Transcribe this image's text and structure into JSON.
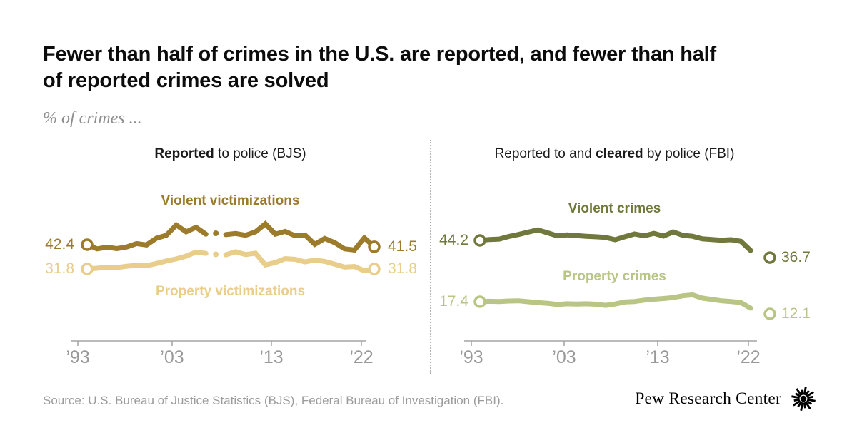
{
  "header": {
    "title_line1": "Fewer than half of crimes in the U.S. are reported, and fewer than half",
    "title_line2": "of reported crimes are solved",
    "subtitle": "% of crimes ..."
  },
  "colors": {
    "gold": "#9C7B2A",
    "tan": "#E9CD8B",
    "olive": "#71783C",
    "light_green": "#B9C584",
    "axis": "#a3a3a3",
    "divider": "#b3b3b3"
  },
  "chart_data": [
    {
      "type": "line",
      "panel": "left",
      "panel_title": {
        "pre": "",
        "bold": "Reported",
        "post": " to police (BJS)"
      },
      "years": [
        1993,
        1994,
        1995,
        1996,
        1997,
        1998,
        1999,
        2000,
        2001,
        2002,
        2003,
        2004,
        2005,
        2006,
        2007,
        2008,
        2009,
        2010,
        2011,
        2012,
        2013,
        2014,
        2015,
        2016,
        2017,
        2018,
        2019,
        2020,
        2021,
        2022
      ],
      "xticks": [
        "’93",
        "’03",
        "’13",
        "’22"
      ],
      "xtick_years": [
        1993,
        2003,
        2013,
        2022
      ],
      "break_year": 2006,
      "ylim": [
        25,
        55
      ],
      "series": [
        {
          "name": "Violent victimizations",
          "color": "#9C7B2A",
          "start_label": "42.4",
          "end_label": "41.5",
          "values": [
            42.4,
            40.6,
            41.3,
            40.7,
            41.4,
            42.9,
            42.3,
            45.2,
            46.5,
            51.0,
            48.0,
            50.0,
            47.0,
            47.4,
            46.8,
            47.3,
            46.5,
            48.0,
            51.5,
            47.0,
            48.2,
            46.3,
            46.6,
            42.6,
            45.1,
            43.3,
            40.6,
            40.1,
            45.4,
            41.5
          ]
        },
        {
          "name": "Property victimizations",
          "color": "#E9CD8B",
          "start_label": "31.8",
          "end_label": "31.8",
          "values": [
            31.8,
            32.1,
            32.6,
            32.4,
            33.0,
            33.4,
            33.2,
            34.2,
            35.3,
            36.2,
            37.4,
            39.2,
            38.6,
            38.2,
            38.0,
            39.3,
            38.1,
            38.7,
            33.6,
            34.6,
            36.3,
            36.0,
            34.9,
            35.7,
            35.1,
            33.9,
            32.6,
            32.9,
            31.0,
            31.8
          ]
        }
      ]
    },
    {
      "type": "line",
      "panel": "right",
      "panel_title": {
        "pre": "Reported to and ",
        "bold": "cleared",
        "post": " by police (FBI)"
      },
      "years": [
        1993,
        1994,
        1995,
        1996,
        1997,
        1998,
        1999,
        2000,
        2001,
        2002,
        2003,
        2004,
        2005,
        2006,
        2007,
        2008,
        2009,
        2010,
        2011,
        2012,
        2013,
        2014,
        2015,
        2016,
        2017,
        2018,
        2019,
        2020,
        2021,
        2022
      ],
      "xticks": [
        "’93",
        "’03",
        "’13",
        "’22"
      ],
      "xtick_years": [
        1993,
        2003,
        2013,
        2022
      ],
      "end_detached": true,
      "draw_through": 2021,
      "ylim": [
        5,
        55
      ],
      "series": [
        {
          "name": "Violent crimes",
          "color": "#71783C",
          "start_label": "44.2",
          "end_label": "36.7",
          "values": [
            44.2,
            44.6,
            44.8,
            45.9,
            46.8,
            47.8,
            48.8,
            47.5,
            46.2,
            46.6,
            46.3,
            46.0,
            45.8,
            45.5,
            44.5,
            45.8,
            47.0,
            46.2,
            47.3,
            46.1,
            47.9,
            46.4,
            46.0,
            44.9,
            44.6,
            44.3,
            44.5,
            43.8,
            39.8,
            36.7
          ]
        },
        {
          "name": "Property crimes",
          "color": "#B9C584",
          "start_label": "17.4",
          "end_label": "12.1",
          "values": [
            17.4,
            17.6,
            17.5,
            17.7,
            17.8,
            17.4,
            17.0,
            16.7,
            16.2,
            16.5,
            16.4,
            16.5,
            16.3,
            15.8,
            16.4,
            17.3,
            17.5,
            18.1,
            18.5,
            18.8,
            19.2,
            20.0,
            20.4,
            19.0,
            18.4,
            17.8,
            17.5,
            17.0,
            14.6,
            12.1
          ]
        }
      ]
    }
  ],
  "footer": {
    "source": "Source: U.S. Bureau of Justice Statistics (BJS), Federal Bureau of Investigation (FBI).",
    "brand": "Pew Research Center"
  }
}
